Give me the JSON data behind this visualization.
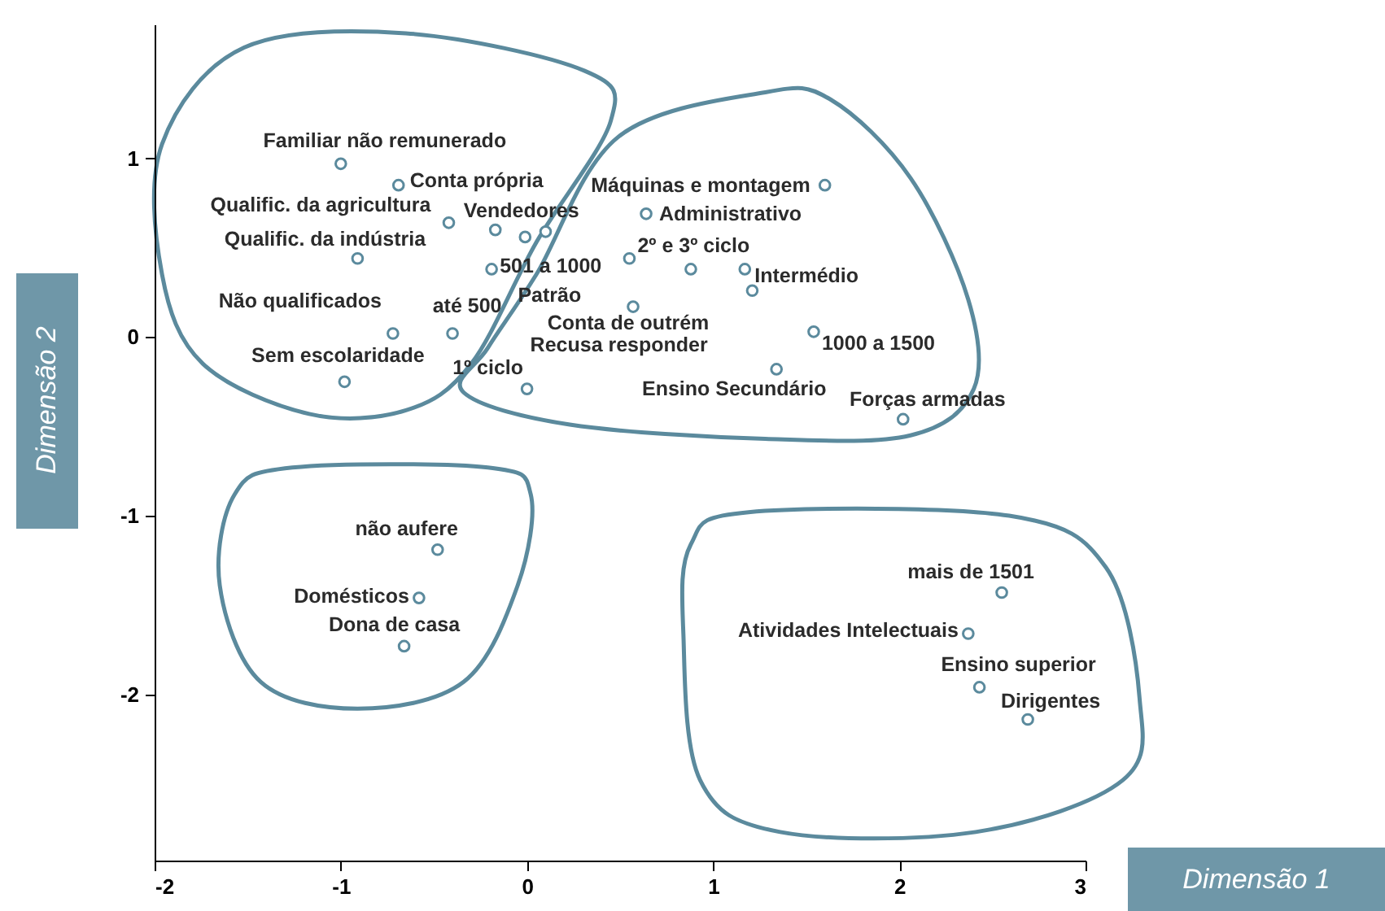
{
  "chart_data": {
    "type": "scatter",
    "xlabel": "Dimensão 1",
    "ylabel": "Dimensão 2",
    "xlim": [
      -2,
      3
    ],
    "ylim": [
      -2.93,
      1.75
    ],
    "xticks": [
      -2,
      -1,
      0,
      1,
      2,
      3
    ],
    "yticks": [
      -2,
      -1,
      0,
      1
    ],
    "grid": false,
    "marker": "circle",
    "series": [
      {
        "color": "#5b8a9d",
        "x": [
          -1.0,
          -0.69,
          -0.42,
          -0.17,
          -0.01,
          0.1,
          -0.91,
          -0.19,
          -0.72,
          -0.4,
          -0.98,
          0.0,
          1.6,
          0.64,
          0.55,
          0.88,
          1.17,
          1.21,
          0.57,
          1.54,
          1.34,
          2.02,
          -0.48,
          -0.58,
          -0.66,
          2.55,
          2.37,
          2.43,
          2.69
        ],
        "values": [
          0.97,
          0.85,
          0.64,
          0.6,
          0.56,
          0.59,
          0.44,
          0.38,
          0.02,
          0.02,
          -0.25,
          -0.29,
          0.85,
          0.69,
          0.44,
          0.38,
          0.38,
          0.26,
          0.17,
          0.03,
          -0.18,
          -0.46,
          -1.19,
          -1.46,
          -1.73,
          -1.43,
          -1.66,
          -1.96,
          -2.14
        ]
      }
    ],
    "annotations": [
      {
        "text": "Familiar não remunerado",
        "x": -1.0,
        "y": 0.97
      },
      {
        "text": "Conta própria",
        "x": -0.69,
        "y": 0.85
      },
      {
        "text": "Qualific. da agricultura",
        "x": -0.42,
        "y": 0.64
      },
      {
        "text": "Vendedores",
        "x": -0.17,
        "y": 0.6
      },
      {
        "text": "Qualific. da indústria",
        "x": -0.91,
        "y": 0.44
      },
      {
        "text": "501  a 1000",
        "x": -0.19,
        "y": 0.38
      },
      {
        "text": "Patrão",
        "x": -0.01,
        "y": 0.56
      },
      {
        "text": "Não qualificados",
        "x": -0.72,
        "y": 0.02
      },
      {
        "text": "até 500",
        "x": -0.4,
        "y": 0.02
      },
      {
        "text": "Sem escolaridade",
        "x": -0.98,
        "y": -0.25
      },
      {
        "text": "1º ciclo",
        "x": 0.0,
        "y": -0.29
      },
      {
        "text": "Máquinas e montagem",
        "x": 1.6,
        "y": 0.85
      },
      {
        "text": "Administrativo",
        "x": 0.64,
        "y": 0.69
      },
      {
        "text": "2º e 3º ciclo",
        "x": 0.55,
        "y": 0.44
      },
      {
        "text": "Intermédio",
        "x": 1.17,
        "y": 0.38
      },
      {
        "text": "Conta de outrém",
        "x": 0.57,
        "y": 0.17
      },
      {
        "text": "Recusa responder",
        "x": 0.0,
        "y": -0.29
      },
      {
        "text": "1000 a 1500",
        "x": 1.54,
        "y": 0.03
      },
      {
        "text": "Ensino Secundário",
        "x": 1.34,
        "y": -0.18
      },
      {
        "text": "Forças armadas",
        "x": 2.02,
        "y": -0.46
      },
      {
        "text": "não aufere",
        "x": -0.48,
        "y": -1.19
      },
      {
        "text": "Domésticos",
        "x": -0.58,
        "y": -1.46
      },
      {
        "text": "Dona de casa",
        "x": -0.66,
        "y": -1.73
      },
      {
        "text": "mais de 1501",
        "x": 2.55,
        "y": -1.43
      },
      {
        "text": "Atividades Intelectuais",
        "x": 2.37,
        "y": -1.66
      },
      {
        "text": "Ensino superior",
        "x": 2.43,
        "y": -1.96
      },
      {
        "text": "Dirigentes",
        "x": 2.69,
        "y": -2.14
      }
    ]
  }
}
